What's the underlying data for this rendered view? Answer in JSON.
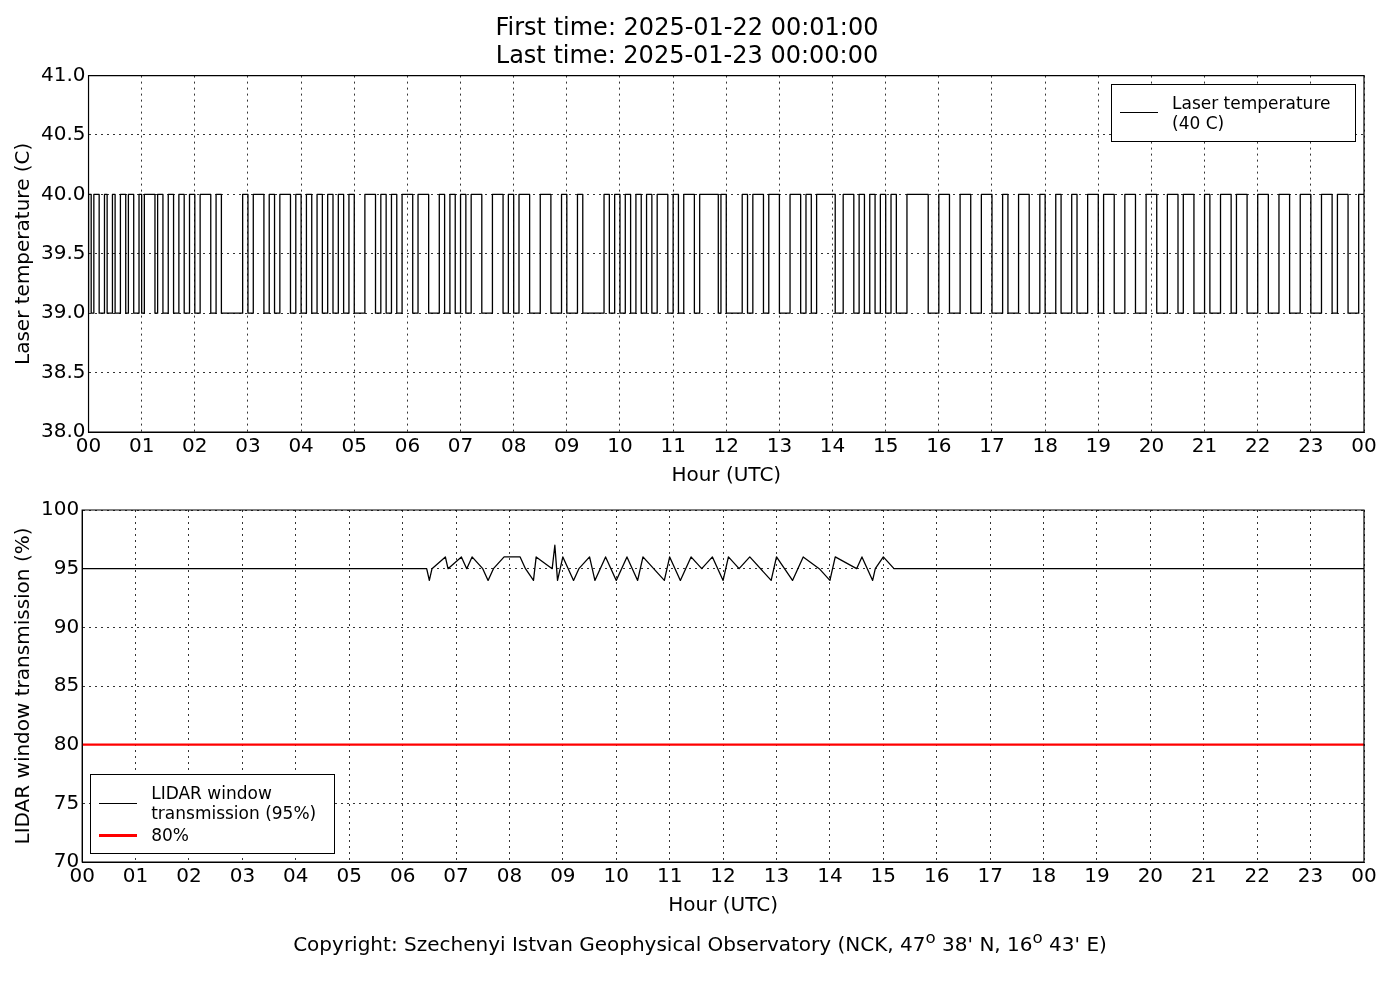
{
  "chart_data": [
    {
      "type": "step",
      "title": "First time: 2025-01-22 00:01:00",
      "subtitle": "Last time: 2025-01-23 00:00:00",
      "xlabel": "Hour (UTC)",
      "ylabel": "Laser temperature (C)",
      "xlim": [
        0,
        24
      ],
      "xticks": [
        {
          "value": 0,
          "label": "00"
        },
        {
          "value": 1,
          "label": "01"
        },
        {
          "value": 2,
          "label": "02"
        },
        {
          "value": 3,
          "label": "03"
        },
        {
          "value": 4,
          "label": "04"
        },
        {
          "value": 5,
          "label": "05"
        },
        {
          "value": 6,
          "label": "06"
        },
        {
          "value": 7,
          "label": "07"
        },
        {
          "value": 8,
          "label": "08"
        },
        {
          "value": 9,
          "label": "09"
        },
        {
          "value": 10,
          "label": "10"
        },
        {
          "value": 11,
          "label": "11"
        },
        {
          "value": 12,
          "label": "12"
        },
        {
          "value": 13,
          "label": "13"
        },
        {
          "value": 14,
          "label": "14"
        },
        {
          "value": 15,
          "label": "15"
        },
        {
          "value": 16,
          "label": "16"
        },
        {
          "value": 17,
          "label": "17"
        },
        {
          "value": 18,
          "label": "18"
        },
        {
          "value": 19,
          "label": "19"
        },
        {
          "value": 20,
          "label": "20"
        },
        {
          "value": 21,
          "label": "21"
        },
        {
          "value": 22,
          "label": "22"
        },
        {
          "value": 23,
          "label": "23"
        },
        {
          "value": 24,
          "label": "00"
        }
      ],
      "ylim": [
        38,
        41
      ],
      "yticks": [
        {
          "value": 38,
          "label": "38.0"
        },
        {
          "value": 38.5,
          "label": "38.5"
        },
        {
          "value": 39,
          "label": "39.0"
        },
        {
          "value": 39.5,
          "label": "39.5"
        },
        {
          "value": 40,
          "label": "40.0"
        },
        {
          "value": 40.5,
          "label": "40.5"
        },
        {
          "value": 41,
          "label": "41.0"
        }
      ],
      "grid": true,
      "legend": "top right",
      "series": [
        {
          "name": "Laser temperature (40 C)",
          "color": "#000000",
          "x": [
            0,
            0.05,
            0.1,
            0.2,
            0.3,
            0.35,
            0.45,
            0.5,
            0.6,
            0.7,
            0.75,
            0.85,
            0.95,
            1.0,
            1.05,
            1.25,
            1.3,
            1.4,
            1.5,
            1.6,
            1.7,
            1.8,
            1.9,
            2.0,
            2.1,
            2.3,
            2.4,
            2.5,
            2.9,
            3.0,
            3.1,
            3.3,
            3.4,
            3.5,
            3.6,
            3.8,
            3.9,
            4.0,
            4.1,
            4.2,
            4.3,
            4.4,
            4.5,
            4.6,
            4.7,
            4.8,
            4.9,
            5.0,
            5.2,
            5.4,
            5.5,
            5.6,
            5.7,
            5.8,
            5.9,
            6.1,
            6.2,
            6.4,
            6.6,
            6.7,
            6.8,
            6.9,
            7.0,
            7.1,
            7.2,
            7.4,
            7.6,
            7.8,
            7.9,
            8.0,
            8.1,
            8.3,
            8.5,
            8.7,
            8.9,
            9.0,
            9.2,
            9.3,
            9.7,
            9.8,
            9.9,
            10.0,
            10.1,
            10.2,
            10.3,
            10.4,
            10.5,
            10.6,
            10.7,
            10.9,
            11.0,
            11.1,
            11.2,
            11.4,
            11.5,
            11.85,
            11.9,
            12.0,
            12.3,
            12.4,
            12.5,
            12.7,
            12.8,
            13.0,
            13.2,
            13.4,
            13.5,
            13.6,
            13.7,
            14.05,
            14.2,
            14.4,
            14.5,
            14.6,
            14.7,
            14.8,
            14.9,
            15.0,
            15.1,
            15.2,
            15.4,
            15.8,
            16.0,
            16.2,
            16.4,
            16.6,
            16.8,
            17.0,
            17.2,
            17.3,
            17.5,
            17.7,
            17.9,
            18.0,
            18.2,
            18.3,
            18.5,
            18.6,
            18.8,
            19.0,
            19.1,
            19.3,
            19.5,
            19.7,
            19.9,
            20.1,
            20.3,
            20.5,
            20.6,
            20.8,
            21.0,
            21.1,
            21.3,
            21.5,
            21.6,
            21.8,
            22.0,
            22.2,
            22.4,
            22.6,
            22.8,
            23.0,
            23.2,
            23.4,
            23.5,
            23.7,
            23.9,
            24.0
          ],
          "values": [
            39,
            40,
            39,
            40,
            39,
            40,
            39,
            40,
            39,
            40,
            39,
            40,
            39,
            40,
            39,
            40,
            39,
            40,
            39,
            40,
            39,
            40,
            39,
            40,
            39,
            40,
            39,
            40,
            39,
            40,
            39,
            40,
            39,
            40,
            39,
            40,
            39,
            40,
            39,
            40,
            39,
            40,
            39,
            40,
            39,
            40,
            39,
            40,
            39,
            40,
            39,
            40,
            39,
            40,
            39,
            40,
            39,
            40,
            39,
            40,
            39,
            40,
            39,
            40,
            39,
            40,
            39,
            40,
            39,
            40,
            39,
            40,
            39,
            40,
            39,
            40,
            39,
            40,
            39,
            40,
            39,
            40,
            39,
            40,
            39,
            40,
            39,
            40,
            39,
            40,
            39,
            40,
            39,
            40,
            39,
            40,
            39,
            40,
            39,
            40,
            39,
            40,
            39,
            40,
            39,
            40,
            39,
            40,
            39,
            40,
            39,
            40,
            39,
            40,
            39,
            40,
            39,
            40,
            39,
            40,
            39,
            40,
            39,
            40,
            39,
            40,
            39,
            40,
            39,
            40,
            39,
            40,
            39,
            40,
            39,
            40,
            39,
            40,
            39,
            40,
            39,
            40,
            39,
            40,
            39,
            40,
            39,
            40,
            39,
            40,
            39,
            40,
            39,
            40,
            39,
            40,
            39,
            40,
            39,
            40,
            39,
            40,
            39,
            40,
            39,
            40,
            39,
            40
          ]
        }
      ]
    },
    {
      "type": "line",
      "xlabel": "Hour (UTC)",
      "ylabel": "LIDAR window transmission (%)",
      "xlim": [
        0,
        24
      ],
      "xticks": [
        {
          "value": 0,
          "label": "00"
        },
        {
          "value": 1,
          "label": "01"
        },
        {
          "value": 2,
          "label": "02"
        },
        {
          "value": 3,
          "label": "03"
        },
        {
          "value": 4,
          "label": "04"
        },
        {
          "value": 5,
          "label": "05"
        },
        {
          "value": 6,
          "label": "06"
        },
        {
          "value": 7,
          "label": "07"
        },
        {
          "value": 8,
          "label": "08"
        },
        {
          "value": 9,
          "label": "09"
        },
        {
          "value": 10,
          "label": "10"
        },
        {
          "value": 11,
          "label": "11"
        },
        {
          "value": 12,
          "label": "12"
        },
        {
          "value": 13,
          "label": "13"
        },
        {
          "value": 14,
          "label": "14"
        },
        {
          "value": 15,
          "label": "15"
        },
        {
          "value": 16,
          "label": "16"
        },
        {
          "value": 17,
          "label": "17"
        },
        {
          "value": 18,
          "label": "18"
        },
        {
          "value": 19,
          "label": "19"
        },
        {
          "value": 20,
          "label": "20"
        },
        {
          "value": 21,
          "label": "21"
        },
        {
          "value": 22,
          "label": "22"
        },
        {
          "value": 23,
          "label": "23"
        },
        {
          "value": 24,
          "label": "00"
        }
      ],
      "ylim": [
        70,
        100
      ],
      "yticks": [
        70,
        75,
        80,
        85,
        90,
        95,
        100
      ],
      "grid": true,
      "legend": "bottom left",
      "annotations": [
        "Copyright: Szechenyi Istvan Geophysical Observatory (NCK, 47$^{o}$ 38' N, 16$^{o}$ 43' E)"
      ],
      "series": [
        {
          "name": "LIDAR window transmission (95%)",
          "color": "#000000",
          "x": [
            0,
            6.45,
            6.5,
            6.55,
            6.8,
            6.85,
            7.1,
            7.2,
            7.3,
            7.5,
            7.6,
            7.7,
            7.9,
            8.2,
            8.3,
            8.45,
            8.5,
            8.8,
            8.85,
            8.9,
            9.0,
            9.2,
            9.3,
            9.5,
            9.6,
            9.8,
            10.0,
            10.2,
            10.4,
            10.5,
            10.9,
            11.0,
            11.2,
            11.4,
            11.6,
            11.8,
            12.0,
            12.1,
            12.3,
            12.5,
            12.9,
            13.0,
            13.3,
            13.5,
            13.8,
            14.0,
            14.1,
            14.5,
            14.6,
            14.8,
            14.85,
            15.0,
            15.2,
            24
          ],
          "values": [
            95,
            95,
            94,
            95,
            96,
            95,
            96,
            95,
            96,
            95,
            94,
            95,
            96,
            96,
            95,
            94,
            96,
            95,
            97,
            94,
            96,
            94,
            95,
            96,
            94,
            96,
            94,
            96,
            94,
            96,
            94,
            96,
            94,
            96,
            95,
            96,
            94,
            96,
            95,
            96,
            94,
            96,
            94,
            96,
            95,
            94,
            96,
            95,
            96,
            94,
            95,
            96,
            95,
            95
          ]
        },
        {
          "name": "80%",
          "color": "#ff0000",
          "x": [
            0,
            24
          ],
          "values": [
            80,
            80
          ]
        }
      ]
    }
  ]
}
